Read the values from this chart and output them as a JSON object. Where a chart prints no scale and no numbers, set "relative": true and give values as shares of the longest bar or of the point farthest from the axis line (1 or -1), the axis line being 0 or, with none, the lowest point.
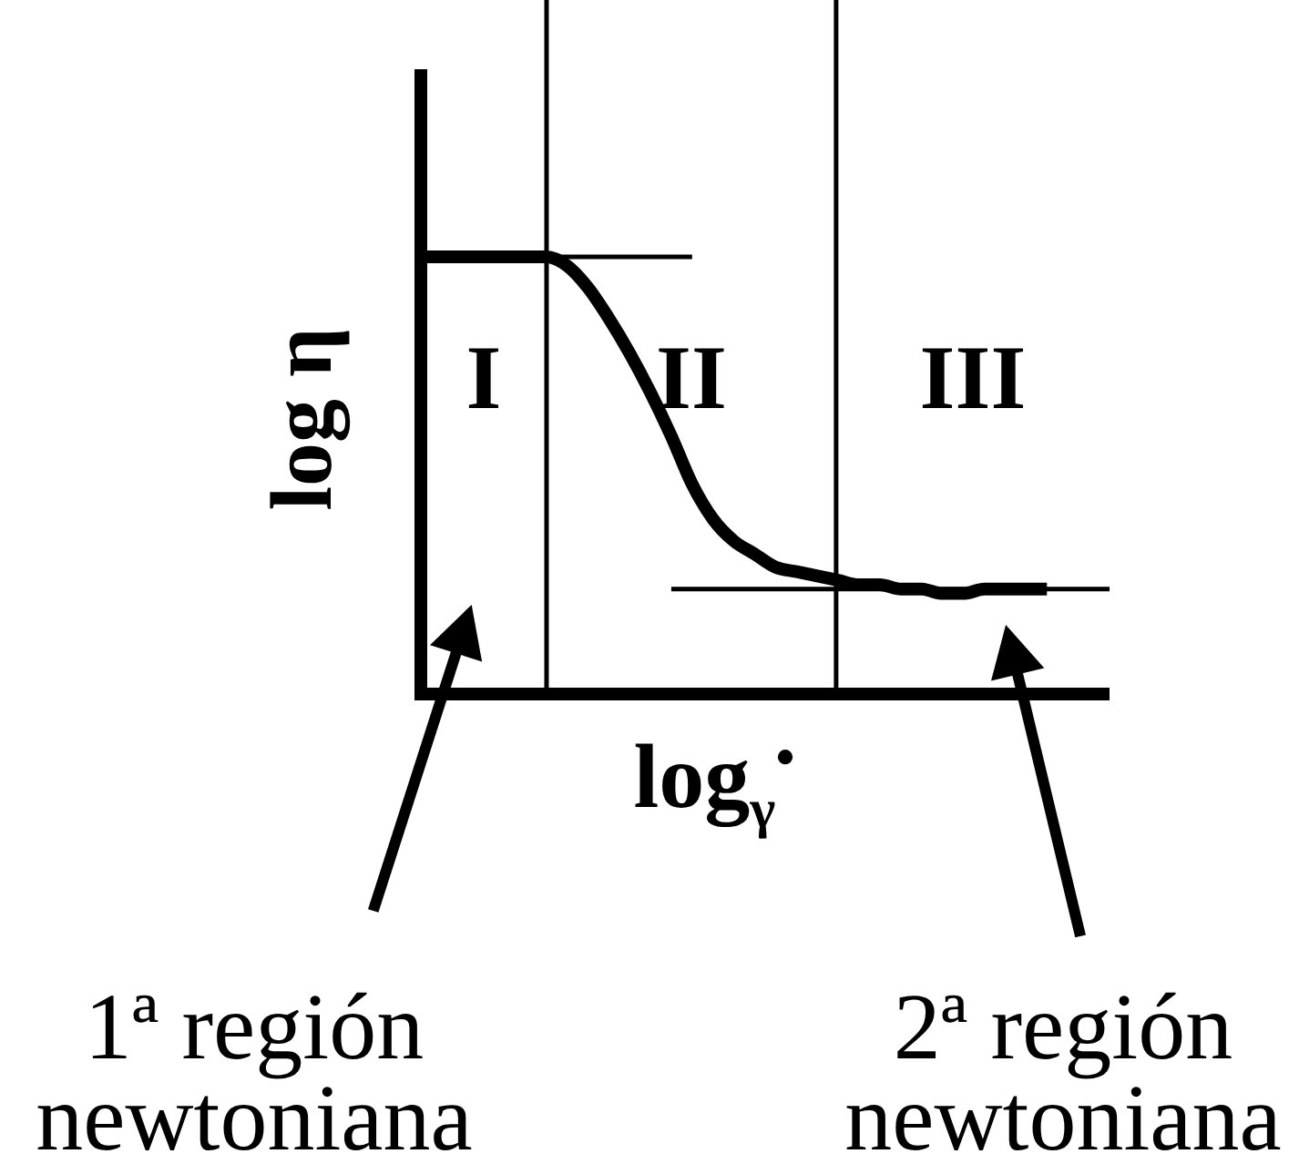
{
  "chart_data": {
    "type": "line",
    "relative": true,
    "xlabel": "log$_{γ}$$^{•}$",
    "ylabel": "log η",
    "categories": [
      null,
      null,
      null,
      null,
      null,
      null,
      null,
      null,
      null,
      null,
      null,
      null,
      null,
      null,
      null,
      null,
      null,
      null,
      null,
      null,
      null,
      null,
      null,
      null,
      null,
      null,
      null,
      null,
      null,
      null,
      null,
      null,
      null,
      null
    ],
    "series": [
      {
        "color": "#000000",
        "values": [
          1,
          1,
          1,
          1,
          1,
          1,
          1,
          0.98,
          0.93,
          0.86,
          0.78,
          0.69,
          0.59,
          0.48,
          0.4,
          0.35,
          0.32,
          0.29,
          0.28,
          0.27,
          0.26,
          0.25,
          0.25,
          0.24,
          0.24,
          0.23,
          0.23,
          0.24,
          0.24,
          0.24,
          0.24,
          null,
          null,
          null
        ]
      },
      {
        "color": "#000000",
        "values": [
          1,
          1,
          1,
          1,
          1,
          1,
          1,
          1,
          1,
          1,
          1,
          1,
          1,
          1,
          null,
          null,
          null,
          null,
          null,
          null,
          null,
          null,
          null,
          null,
          null,
          null,
          null,
          null,
          null,
          null,
          null,
          null,
          null,
          null
        ]
      },
      {
        "color": "#000000",
        "values": [
          null,
          null,
          null,
          null,
          null,
          null,
          null,
          null,
          null,
          null,
          null,
          null,
          0.24,
          0.24,
          0.24,
          0.24,
          0.24,
          0.24,
          0.24,
          0.24,
          0.24,
          0.24,
          0.24,
          0.24,
          0.24,
          0.24,
          0.24,
          0.24,
          0.24,
          0.24,
          0.24,
          0.24,
          0.24,
          0.24
        ]
      }
    ],
    "annotations": [
      "I",
      "II",
      "III",
      "1ª región newtoniana",
      "2ª región newtoniana"
    ]
  }
}
